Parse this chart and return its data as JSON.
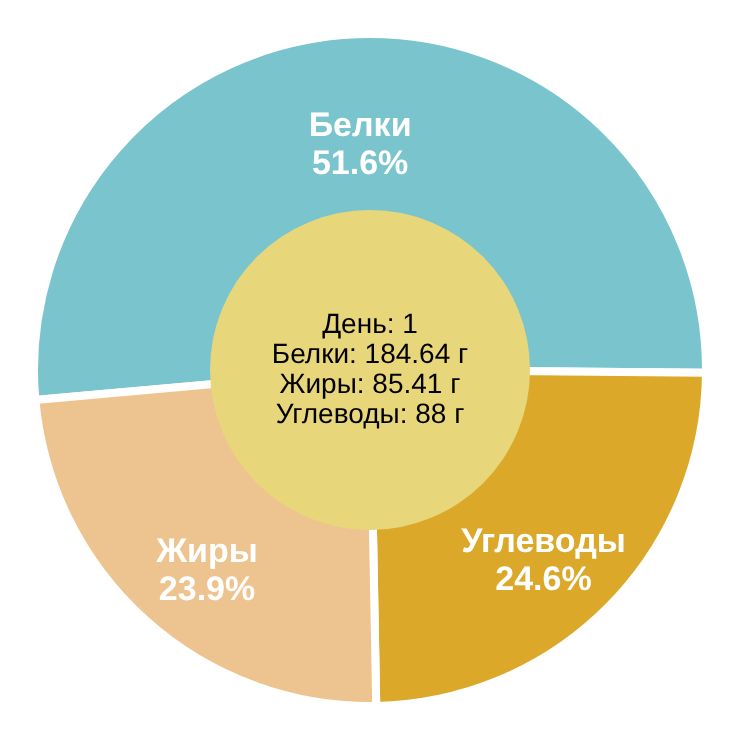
{
  "chart_data": {
    "type": "donut",
    "categories": [
      "Белки",
      "Углеводы",
      "Жиры"
    ],
    "values": [
      51.6,
      24.6,
      23.9
    ],
    "colors": [
      "#7ac5cd",
      "#dba82a",
      "#edc48f"
    ],
    "value_labels": [
      "51.6%",
      "24.6%",
      "23.9%"
    ],
    "legend": false,
    "annotations": [
      "День: 1",
      "Белки: 184.64 г",
      "Жиры: 85.41 г",
      "Углеводы: 88 г"
    ]
  }
}
